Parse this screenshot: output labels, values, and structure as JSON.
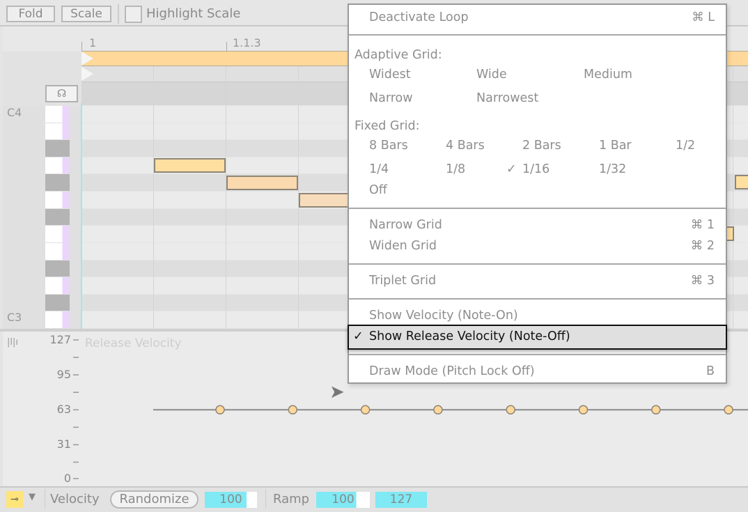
{
  "toolbar": {
    "fold": "Fold",
    "scale": "Scale",
    "highlight_scale": "Highlight Scale",
    "highlight_checked": false
  },
  "ruler": {
    "labels": [
      "1",
      "1.1.3"
    ]
  },
  "piano": {
    "c4": "C4",
    "c3": "C3"
  },
  "velocity_lane": {
    "title": "Release Velocity",
    "ticks": [
      "127",
      "95",
      "63",
      "31",
      "0"
    ],
    "release_velocities": [
      63,
      63,
      63,
      63,
      63,
      63,
      63,
      63
    ]
  },
  "bottom": {
    "velocity_label": "Velocity",
    "randomize": "Randomize",
    "velocity_value": "100",
    "ramp_label": "Ramp",
    "ramp_start": "100",
    "ramp_end": "127"
  },
  "menu": {
    "deactivate_loop": "Deactivate Loop",
    "deactivate_loop_sc": "⌘ L",
    "adaptive_header": "Adaptive Grid:",
    "adaptive": [
      "Widest",
      "Wide",
      "Medium",
      "Narrow",
      "Narrowest"
    ],
    "fixed_header": "Fixed Grid:",
    "fixed": [
      "8 Bars",
      "4 Bars",
      "2 Bars",
      "1 Bar",
      "1/2",
      "1/4",
      "1/8",
      "1/16",
      "1/32",
      "Off"
    ],
    "fixed_checked": "1/16",
    "check": "✓",
    "narrow_grid": "Narrow Grid",
    "narrow_grid_sc": "⌘ 1",
    "widen_grid": "Widen Grid",
    "widen_grid_sc": "⌘ 2",
    "triplet_grid": "Triplet Grid",
    "triplet_grid_sc": "⌘ 3",
    "show_velocity": "Show Velocity (Note-On)",
    "show_release": "Show Release Velocity (Note-Off)",
    "draw_mode": "Draw Mode (Pitch Lock Off)",
    "draw_mode_sc": "B"
  },
  "colors": {
    "note": "#ffd89a",
    "loop": "#ffd89a",
    "field": "#7fe9f4",
    "key_strip": "#ead6fb"
  }
}
